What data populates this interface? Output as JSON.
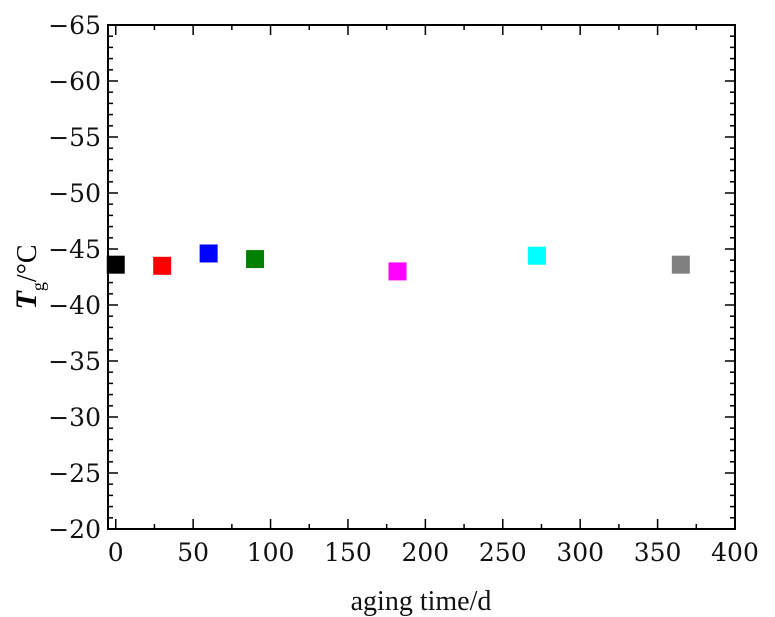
{
  "chart_data": {
    "type": "scatter",
    "xlabel": "aging time/d",
    "ylabel": {
      "symbol": "T",
      "subscript": "g",
      "unit": "/°C"
    },
    "xlim": [
      -5,
      400
    ],
    "ylim": [
      -20,
      -65
    ],
    "y_axis_inverted": true,
    "x_ticks": [
      "0",
      "50",
      "100",
      "150",
      "200",
      "250",
      "300",
      "350",
      "400"
    ],
    "y_ticks": [
      "−20",
      "−25",
      "−30",
      "−35",
      "−40",
      "−45",
      "−50",
      "−55",
      "−60",
      "−65"
    ],
    "grid": false,
    "marker": "square",
    "points": [
      {
        "x": 0,
        "y": -43.6,
        "color": "#000000"
      },
      {
        "x": 30,
        "y": -43.5,
        "color": "#ff0000"
      },
      {
        "x": 60,
        "y": -44.6,
        "color": "#0000ff"
      },
      {
        "x": 90,
        "y": -44.1,
        "color": "#008000"
      },
      {
        "x": 182,
        "y": -43.0,
        "color": "#ff00ff"
      },
      {
        "x": 272,
        "y": -44.4,
        "color": "#00ffff"
      },
      {
        "x": 365,
        "y": -43.6,
        "color": "#808080"
      }
    ]
  }
}
